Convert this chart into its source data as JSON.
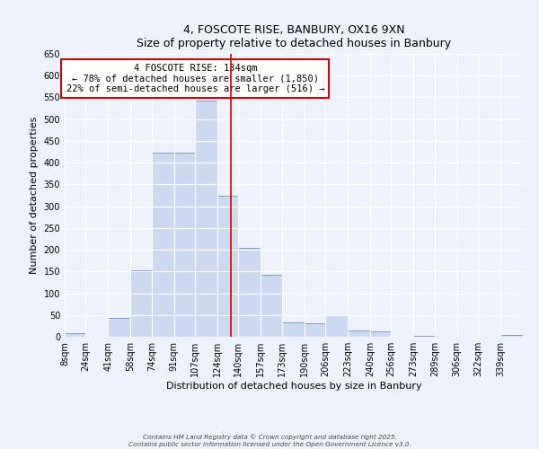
{
  "title": "4, FOSCOTE RISE, BANBURY, OX16 9XN",
  "subtitle": "Size of property relative to detached houses in Banbury",
  "xlabel": "Distribution of detached houses by size in Banbury",
  "ylabel": "Number of detached properties",
  "bar_color": "#ccd9f0",
  "bar_edge_color": "#7090c0",
  "background_color": "#eef2fb",
  "grid_color": "#ffffff",
  "bin_labels": [
    "8sqm",
    "24sqm",
    "41sqm",
    "58sqm",
    "74sqm",
    "91sqm",
    "107sqm",
    "124sqm",
    "140sqm",
    "157sqm",
    "173sqm",
    "190sqm",
    "206sqm",
    "223sqm",
    "240sqm",
    "256sqm",
    "273sqm",
    "289sqm",
    "306sqm",
    "322sqm",
    "339sqm"
  ],
  "bin_edges": [
    8,
    24,
    41,
    58,
    74,
    91,
    107,
    124,
    140,
    157,
    173,
    190,
    206,
    223,
    240,
    256,
    273,
    289,
    306,
    322,
    339,
    356
  ],
  "bar_heights": [
    8,
    0,
    44,
    153,
    422,
    424,
    543,
    324,
    205,
    143,
    33,
    30,
    49,
    14,
    12,
    0,
    3,
    0,
    1,
    0,
    5
  ],
  "vline_x": 134,
  "vline_color": "#cc0000",
  "ylim": [
    0,
    650
  ],
  "yticks": [
    0,
    50,
    100,
    150,
    200,
    250,
    300,
    350,
    400,
    450,
    500,
    550,
    600,
    650
  ],
  "annotation_title": "4 FOSCOTE RISE: 134sqm",
  "annotation_line1": "← 78% of detached houses are smaller (1,850)",
  "annotation_line2": "22% of semi-detached houses are larger (516) →",
  "annotation_box_color": "#ffffff",
  "annotation_edge_color": "#cc0000",
  "footnote1": "Contains HM Land Registry data © Crown copyright and database right 2025.",
  "footnote2": "Contains public sector information licensed under the Open Government Licence v3.0."
}
